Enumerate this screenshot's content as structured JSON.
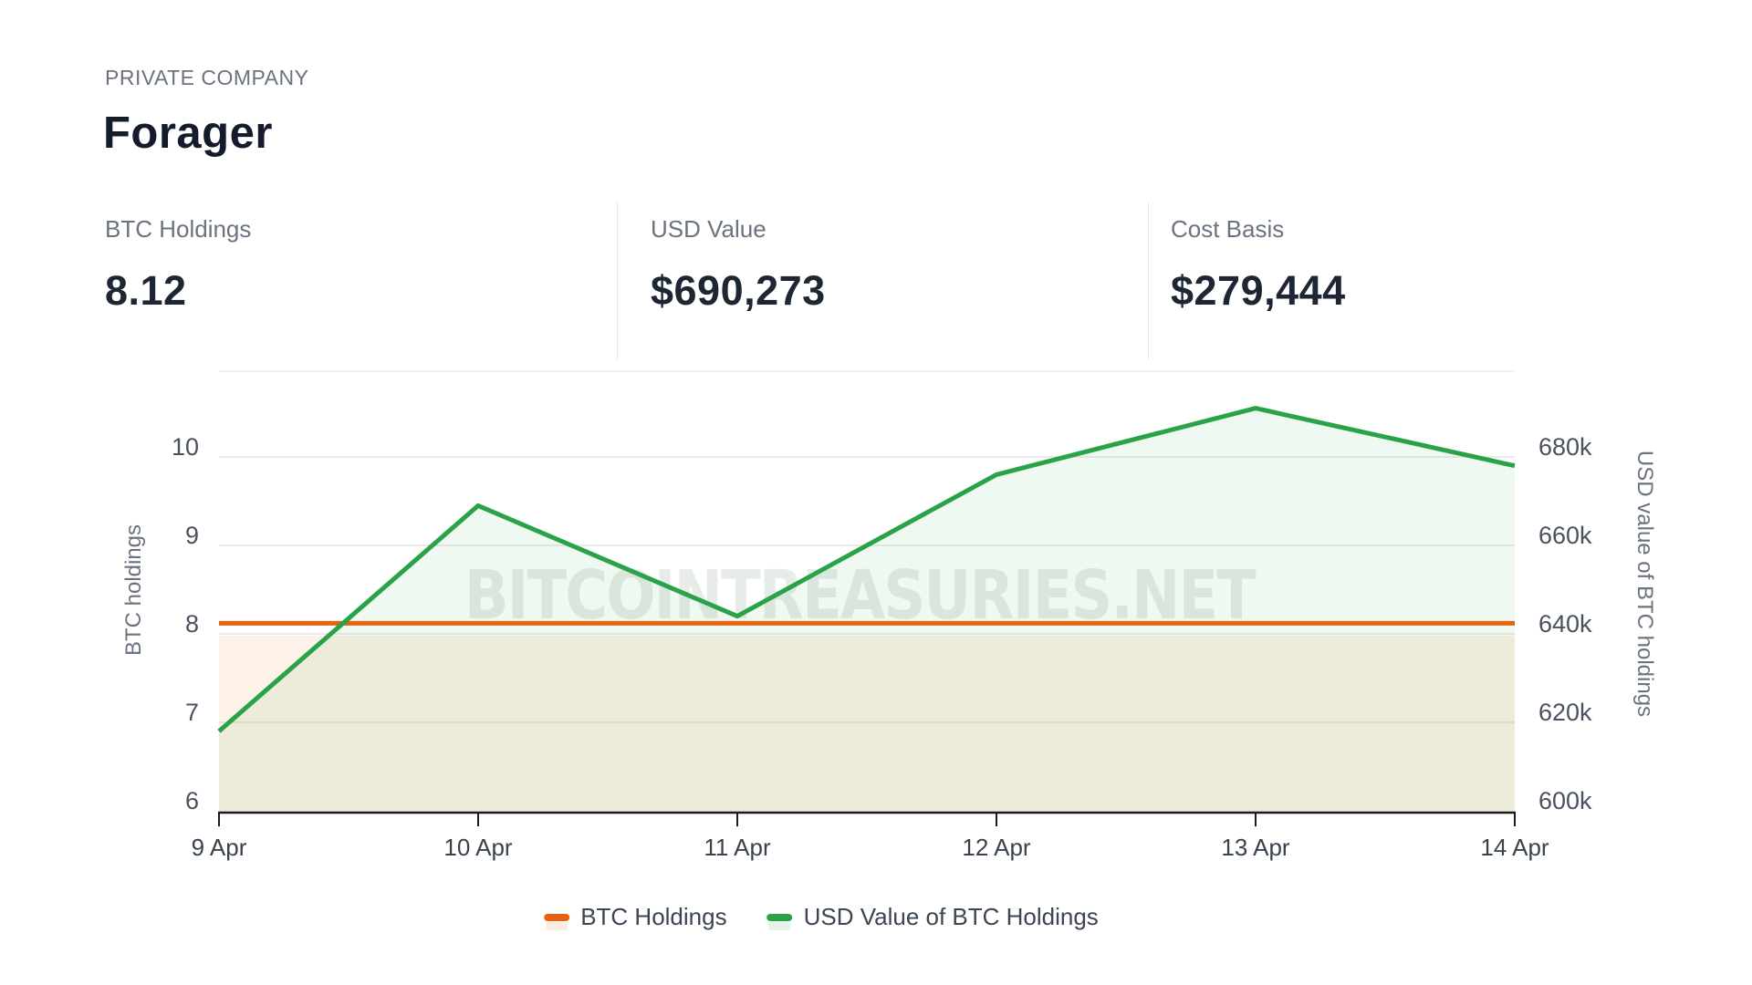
{
  "header": {
    "eyebrow": "PRIVATE COMPANY",
    "title": "Forager"
  },
  "stats": [
    {
      "label": "BTC Holdings",
      "value": "8.12"
    },
    {
      "label": "USD Value",
      "value": "$690,273"
    },
    {
      "label": "Cost Basis",
      "value": "$279,444"
    }
  ],
  "watermark": "BITCOINTREASURIES.NET",
  "legend": [
    {
      "label": "BTC Holdings",
      "color": "#e8630f"
    },
    {
      "label": "USD Value of BTC Holdings",
      "color": "#2aa348"
    }
  ],
  "chart_data": {
    "type": "line",
    "title": "",
    "categories": [
      "9 Apr",
      "10 Apr",
      "11 Apr",
      "12 Apr",
      "13 Apr",
      "14 Apr"
    ],
    "series": [
      {
        "name": "BTC Holdings",
        "axis": "left",
        "color": "#e8630f",
        "area": true,
        "values": [
          8.12,
          8.12,
          8.12,
          8.12,
          8.12,
          8.12
        ]
      },
      {
        "name": "USD Value of BTC Holdings",
        "axis": "right",
        "color": "#2aa348",
        "area": true,
        "values": [
          618000,
          669000,
          644000,
          676000,
          691000,
          678000
        ]
      }
    ],
    "y_axis_left": {
      "title": "BTC holdings",
      "ticks": [
        "10",
        "9",
        "8",
        "7",
        "6"
      ],
      "tick_values": [
        10,
        9,
        8,
        7,
        6
      ],
      "range_shown": [
        6,
        10
      ]
    },
    "y_axis_right": {
      "title": "USD value of BTC holdings",
      "ticks": [
        "680k",
        "660k",
        "640k",
        "620k",
        "600k"
      ],
      "tick_values": [
        680000,
        660000,
        640000,
        620000,
        600000
      ],
      "range_shown": [
        600000,
        680000
      ]
    },
    "grid": true,
    "legend_position": "bottom"
  }
}
